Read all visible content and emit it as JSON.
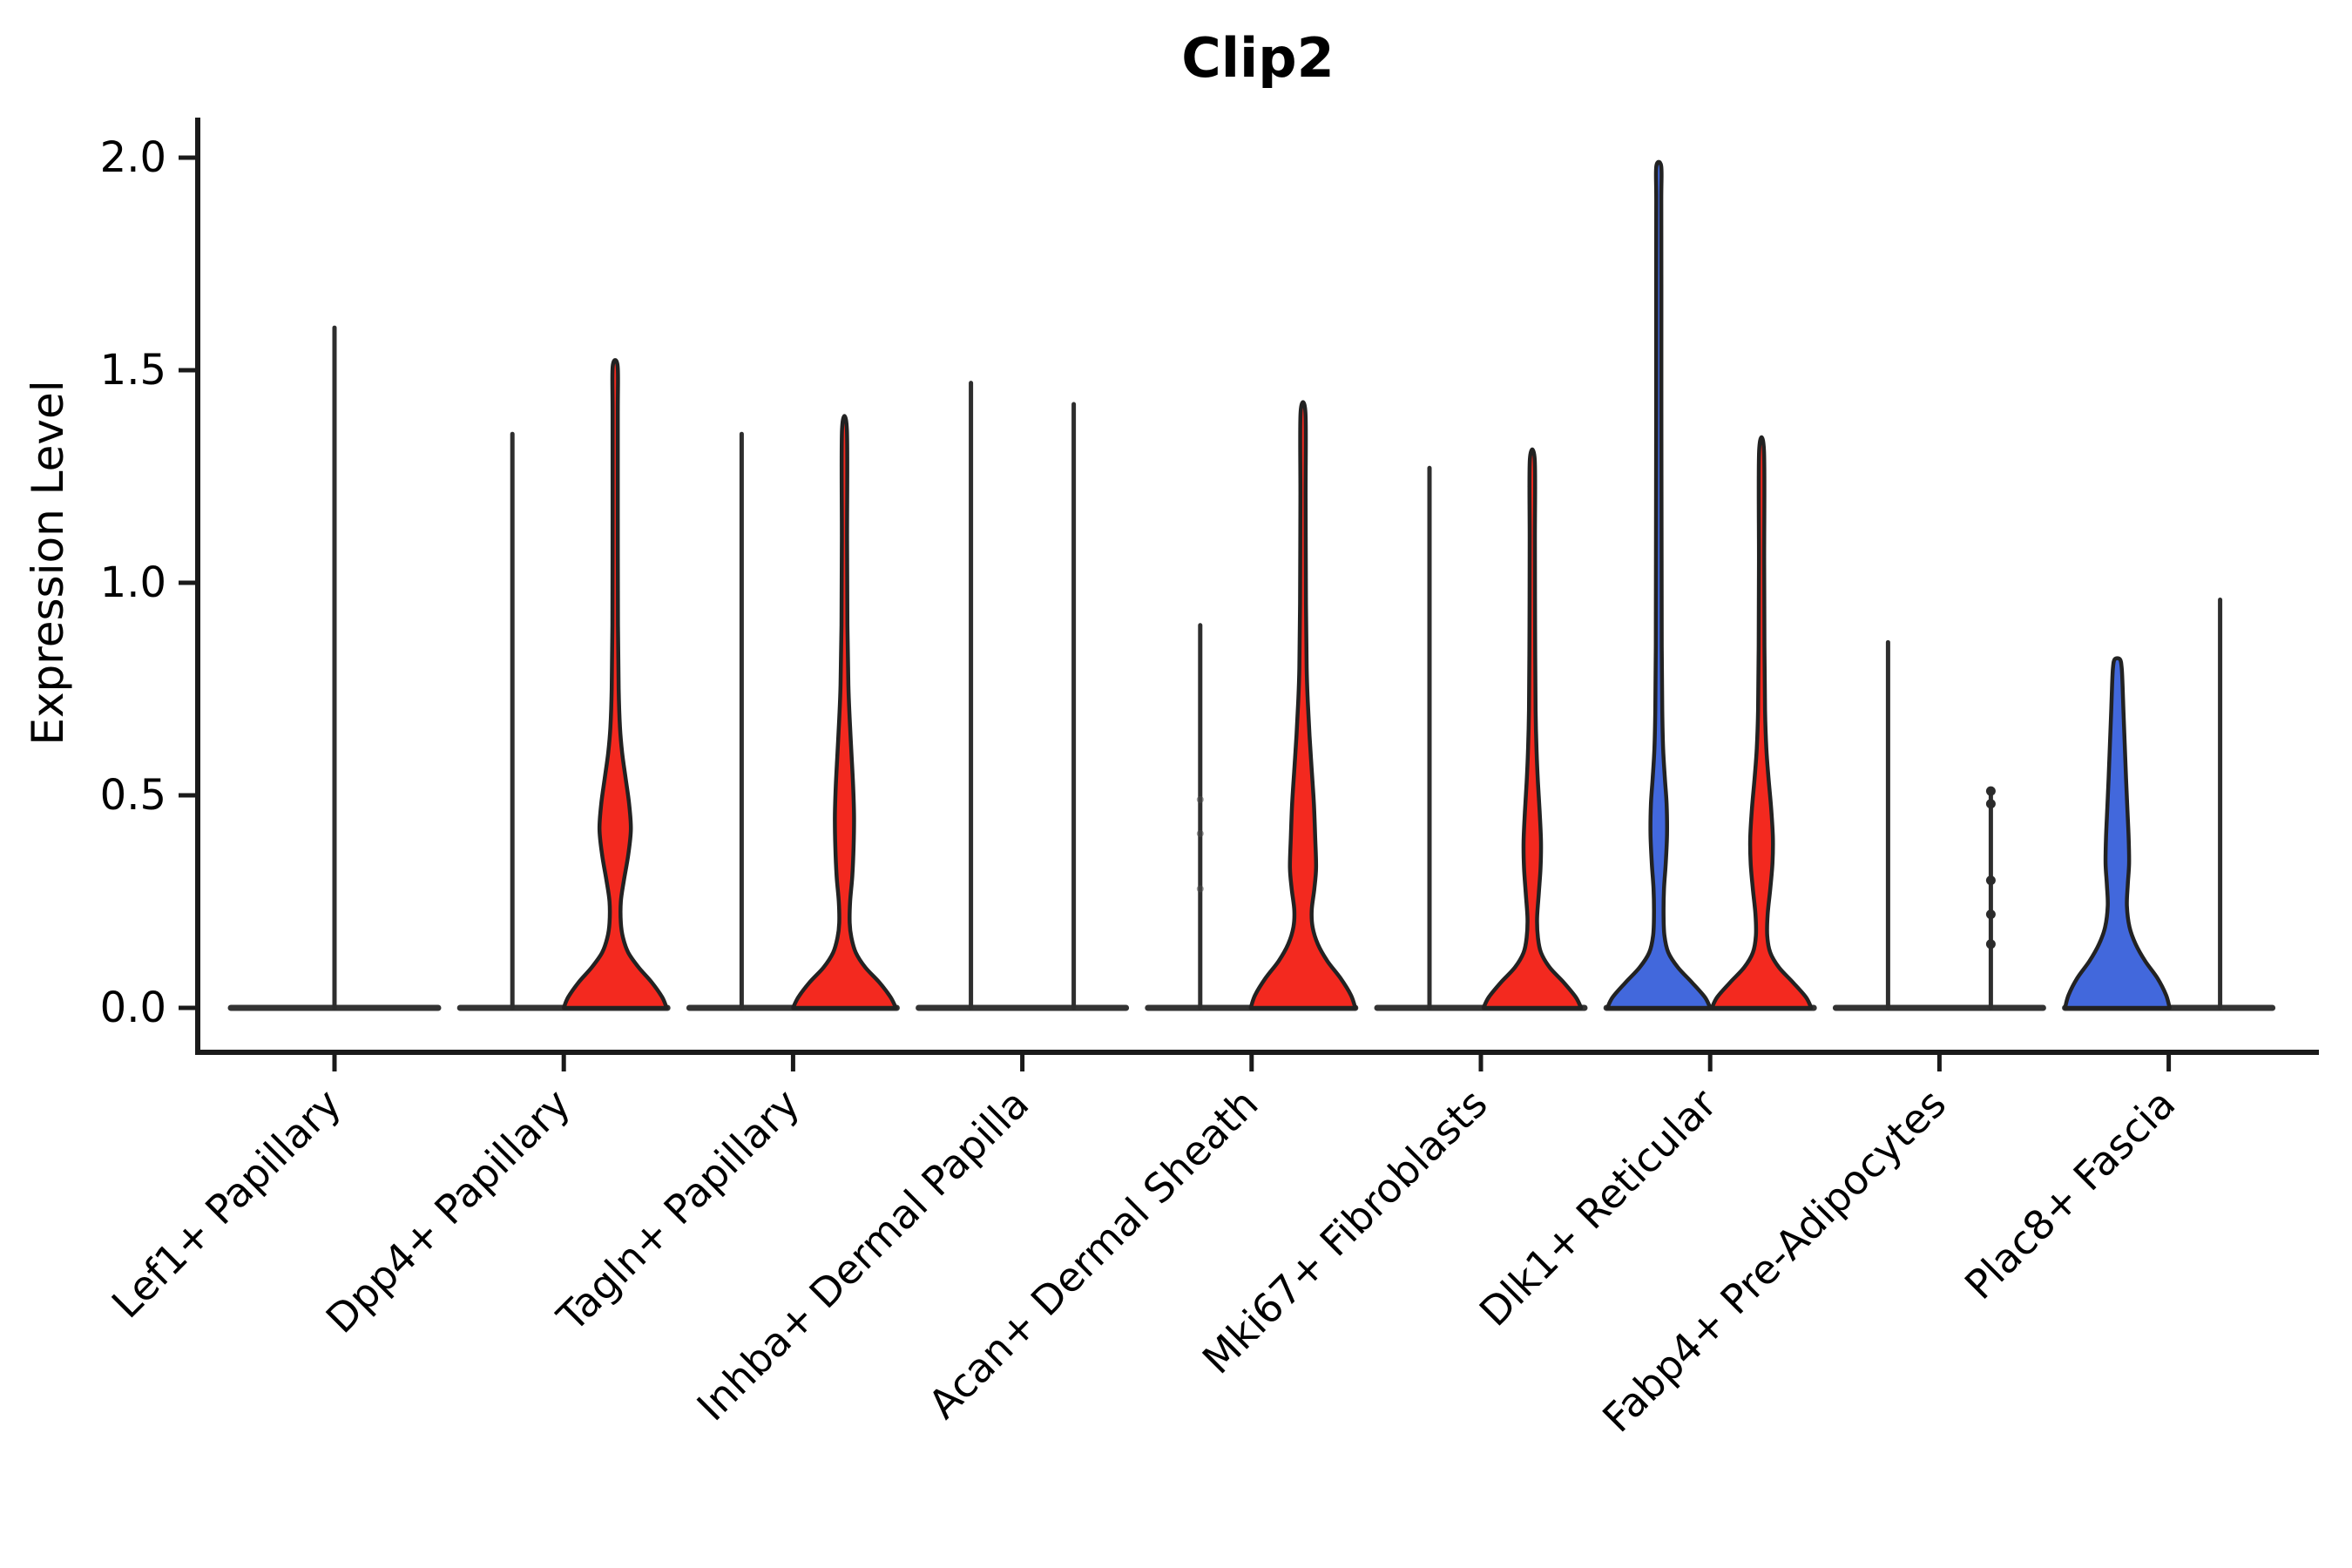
{
  "title": "Clip2",
  "chart_data": {
    "type": "violin",
    "title": "Clip2",
    "xlabel": "",
    "ylabel": "Expression Level",
    "ylim": [
      0,
      2.05
    ],
    "yticks": [
      "0.0",
      "0.5",
      "1.0",
      "1.5",
      "2.0"
    ],
    "ytick_values": [
      0.0,
      0.5,
      1.0,
      1.5,
      2.0
    ],
    "grid": false,
    "legend": "none",
    "colors": {
      "red": "#f3291f",
      "blue": "#4268dc",
      "axis": "#1a1a1a",
      "spike": "#2e2e2e",
      "violin_edge": "#222222",
      "baseline": "#333333"
    },
    "categories": [
      "Lef1+ Papillary",
      "Dpp4+ Papillary",
      "Tagln+ Papillary",
      "Inhba+ Dermal Papilla",
      "Acan+ Dermal Sheath",
      "Mki67+ Fibroblasts",
      "Dlk1+ Reticular",
      "Fabp4+ Pre-Adipocytes",
      "Plac8+ Fascia"
    ],
    "violin_note": "Each category shows up to two violins (left/right of category tick); 'none' color means a fully collapsed violin (flat line at 0 with a thin tail spike). profile = [expression_value, half_width_px] density outline estimates. max_value = top of tail in expression units.",
    "violins": [
      {
        "category_index": 0,
        "offset": 0,
        "color": "none",
        "max_value": 1.6
      },
      {
        "category_index": 1,
        "offset": -1,
        "color": "none",
        "max_value": 1.35
      },
      {
        "category_index": 1,
        "offset": 1,
        "color": "red",
        "max_value": 1.51,
        "profile": [
          [
            0,
            59
          ],
          [
            0.025,
            54
          ],
          [
            0.06,
            42
          ],
          [
            0.095,
            27
          ],
          [
            0.13,
            15
          ],
          [
            0.165,
            9
          ],
          [
            0.2,
            6.5
          ],
          [
            0.25,
            6.5
          ],
          [
            0.3,
            10
          ],
          [
            0.36,
            15
          ],
          [
            0.42,
            18
          ],
          [
            0.48,
            16
          ],
          [
            0.54,
            12
          ],
          [
            0.6,
            8
          ],
          [
            0.66,
            5.5
          ],
          [
            0.75,
            4
          ],
          [
            0.9,
            3.2
          ],
          [
            1.15,
            3
          ],
          [
            1.4,
            3
          ],
          [
            1.51,
            2.8
          ]
        ]
      },
      {
        "category_index": 2,
        "offset": -1,
        "color": "none",
        "max_value": 1.35
      },
      {
        "category_index": 2,
        "offset": 1,
        "color": "red",
        "max_value": 1.36,
        "profile": [
          [
            0,
            59
          ],
          [
            0.025,
            53
          ],
          [
            0.06,
            40
          ],
          [
            0.095,
            24
          ],
          [
            0.13,
            13
          ],
          [
            0.165,
            8
          ],
          [
            0.2,
            6
          ],
          [
            0.25,
            6.5
          ],
          [
            0.31,
            9
          ],
          [
            0.38,
            10.5
          ],
          [
            0.45,
            11
          ],
          [
            0.52,
            10
          ],
          [
            0.6,
            8
          ],
          [
            0.68,
            6
          ],
          [
            0.76,
            4.5
          ],
          [
            0.9,
            3.4
          ],
          [
            1.1,
            3
          ],
          [
            1.36,
            2.8
          ]
        ]
      },
      {
        "category_index": 3,
        "offset": -1,
        "color": "none",
        "max_value": 1.47
      },
      {
        "category_index": 3,
        "offset": 1,
        "color": "none",
        "max_value": 1.42
      },
      {
        "category_index": 4,
        "offset": -1,
        "color": "none",
        "max_value": 0.9,
        "points": [
          0.49,
          0.41,
          0.28
        ],
        "point_style": "faint"
      },
      {
        "category_index": 4,
        "offset": 1,
        "color": "red",
        "max_value": 1.4,
        "profile": [
          [
            0,
            60
          ],
          [
            0.03,
            55
          ],
          [
            0.07,
            43
          ],
          [
            0.11,
            28
          ],
          [
            0.15,
            17
          ],
          [
            0.19,
            11
          ],
          [
            0.23,
            10
          ],
          [
            0.28,
            13
          ],
          [
            0.33,
            15
          ],
          [
            0.4,
            14
          ],
          [
            0.48,
            12.5
          ],
          [
            0.56,
            10
          ],
          [
            0.64,
            7.5
          ],
          [
            0.72,
            5.5
          ],
          [
            0.8,
            4.2
          ],
          [
            0.95,
            3.4
          ],
          [
            1.2,
            3
          ],
          [
            1.4,
            2.8
          ]
        ]
      },
      {
        "category_index": 5,
        "offset": -1,
        "color": "none",
        "max_value": 1.27
      },
      {
        "category_index": 5,
        "offset": 1,
        "color": "red",
        "max_value": 1.29,
        "profile": [
          [
            0,
            56
          ],
          [
            0.025,
            50
          ],
          [
            0.06,
            36
          ],
          [
            0.095,
            20
          ],
          [
            0.13,
            10
          ],
          [
            0.165,
            6.5
          ],
          [
            0.21,
            5.5
          ],
          [
            0.27,
            7.5
          ],
          [
            0.33,
            9.5
          ],
          [
            0.39,
            10
          ],
          [
            0.46,
            8.5
          ],
          [
            0.53,
            6.5
          ],
          [
            0.6,
            5
          ],
          [
            0.7,
            3.8
          ],
          [
            0.9,
            3.2
          ],
          [
            1.1,
            3
          ],
          [
            1.29,
            2.8
          ]
        ]
      },
      {
        "category_index": 6,
        "offset": -1,
        "color": "blue",
        "max_value": 1.98,
        "profile": [
          [
            0,
            59
          ],
          [
            0.025,
            53
          ],
          [
            0.06,
            38
          ],
          [
            0.095,
            22
          ],
          [
            0.13,
            11
          ],
          [
            0.17,
            6.5
          ],
          [
            0.22,
            5.5
          ],
          [
            0.28,
            6
          ],
          [
            0.34,
            8
          ],
          [
            0.41,
            9.5
          ],
          [
            0.48,
            9
          ],
          [
            0.54,
            7
          ],
          [
            0.61,
            5
          ],
          [
            0.7,
            4
          ],
          [
            0.85,
            3.4
          ],
          [
            1.1,
            3.2
          ],
          [
            1.4,
            3
          ],
          [
            1.7,
            3
          ],
          [
            1.9,
            2.9
          ],
          [
            1.98,
            2.8
          ]
        ]
      },
      {
        "category_index": 6,
        "offset": 1,
        "color": "red",
        "max_value": 1.31,
        "profile": [
          [
            0,
            57
          ],
          [
            0.025,
            51
          ],
          [
            0.06,
            36
          ],
          [
            0.095,
            20
          ],
          [
            0.13,
            10
          ],
          [
            0.17,
            6.5
          ],
          [
            0.22,
            7
          ],
          [
            0.28,
            10
          ],
          [
            0.34,
            12.5
          ],
          [
            0.4,
            13
          ],
          [
            0.47,
            11
          ],
          [
            0.54,
            8
          ],
          [
            0.61,
            5.5
          ],
          [
            0.7,
            4
          ],
          [
            0.85,
            3.3
          ],
          [
            1.05,
            3
          ],
          [
            1.31,
            2.8
          ]
        ]
      },
      {
        "category_index": 7,
        "offset": -1,
        "color": "none",
        "max_value": 0.86
      },
      {
        "category_index": 7,
        "offset": 1,
        "color": "none",
        "max_value": 0.51,
        "points": [
          0.51,
          0.48,
          0.3,
          0.22,
          0.15
        ],
        "point_style": "dark"
      },
      {
        "category_index": 8,
        "offset": -1,
        "color": "blue",
        "max_value": 0.82,
        "profile": [
          [
            0,
            60
          ],
          [
            0.03,
            56
          ],
          [
            0.07,
            46
          ],
          [
            0.11,
            32
          ],
          [
            0.15,
            21
          ],
          [
            0.19,
            14
          ],
          [
            0.24,
            11
          ],
          [
            0.29,
            12
          ],
          [
            0.34,
            13.5
          ],
          [
            0.4,
            13
          ],
          [
            0.47,
            11.5
          ],
          [
            0.54,
            10
          ],
          [
            0.62,
            8.5
          ],
          [
            0.7,
            7
          ],
          [
            0.76,
            6
          ],
          [
            0.8,
            5
          ],
          [
            0.82,
            3
          ]
        ]
      },
      {
        "category_index": 8,
        "offset": 1,
        "color": "none",
        "max_value": 0.96
      }
    ]
  }
}
